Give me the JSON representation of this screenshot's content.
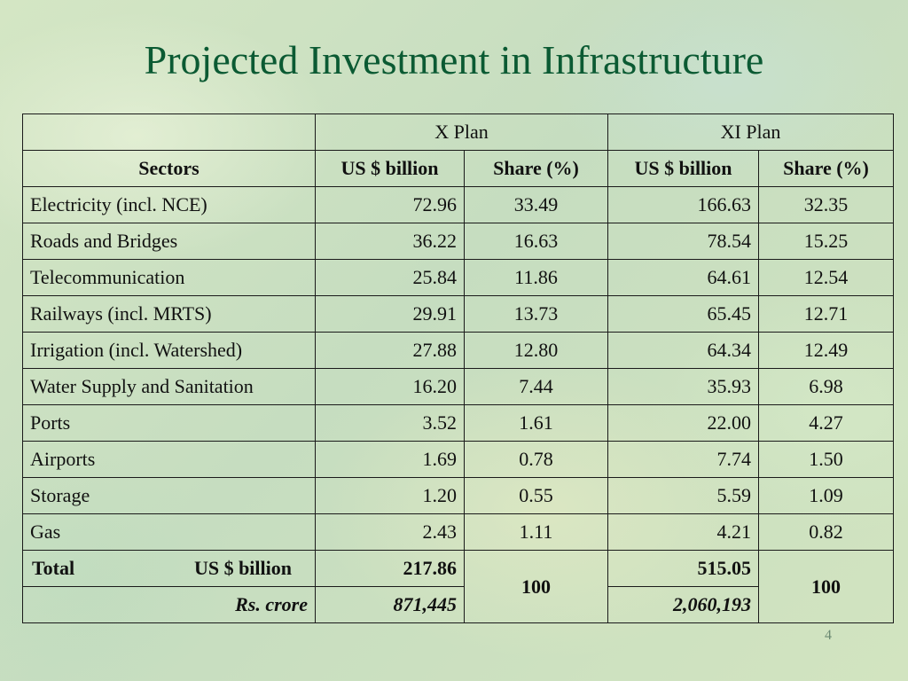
{
  "title": "Projected Investment in Infrastructure",
  "page_number": "4",
  "table": {
    "plan_headers": [
      "X Plan",
      "XI Plan"
    ],
    "column_headers": [
      "Sectors",
      "US $ billion",
      "Share (%)",
      "US $ billion",
      "Share (%)"
    ],
    "rows": [
      {
        "sector": "Electricity (incl. NCE)",
        "x_usd": "72.96",
        "x_share": "33.49",
        "xi_usd": "166.63",
        "xi_share": "32.35"
      },
      {
        "sector": "Roads and Bridges",
        "x_usd": "36.22",
        "x_share": "16.63",
        "xi_usd": "78.54",
        "xi_share": "15.25"
      },
      {
        "sector": "Telecommunication",
        "x_usd": "25.84",
        "x_share": "11.86",
        "xi_usd": "64.61",
        "xi_share": "12.54"
      },
      {
        "sector": "Railways (incl. MRTS)",
        "x_usd": "29.91",
        "x_share": "13.73",
        "xi_usd": "65.45",
        "xi_share": "12.71"
      },
      {
        "sector": "Irrigation (incl. Watershed)",
        "x_usd": "27.88",
        "x_share": "12.80",
        "xi_usd": "64.34",
        "xi_share": "12.49"
      },
      {
        "sector": "Water Supply and Sanitation",
        "x_usd": "16.20",
        "x_share": "7.44",
        "xi_usd": "35.93",
        "xi_share": "6.98"
      },
      {
        "sector": "Ports",
        "x_usd": "3.52",
        "x_share": "1.61",
        "xi_usd": "22.00",
        "xi_share": "4.27"
      },
      {
        "sector": "Airports",
        "x_usd": "1.69",
        "x_share": "0.78",
        "xi_usd": "7.74",
        "xi_share": "1.50"
      },
      {
        "sector": "Storage",
        "x_usd": "1.20",
        "x_share": "0.55",
        "xi_usd": "5.59",
        "xi_share": "1.09"
      },
      {
        "sector": "Gas",
        "x_usd": "2.43",
        "x_share": "1.11",
        "xi_usd": "4.21",
        "xi_share": "0.82"
      }
    ],
    "total": {
      "label": "Total",
      "unit_usd": "US $ billion",
      "unit_rs": "Rs. crore",
      "x_usd": "217.86",
      "x_rs": "871,445",
      "x_share": "100",
      "xi_usd": "515.05",
      "xi_rs": "2,060,193",
      "xi_share": "100"
    }
  }
}
